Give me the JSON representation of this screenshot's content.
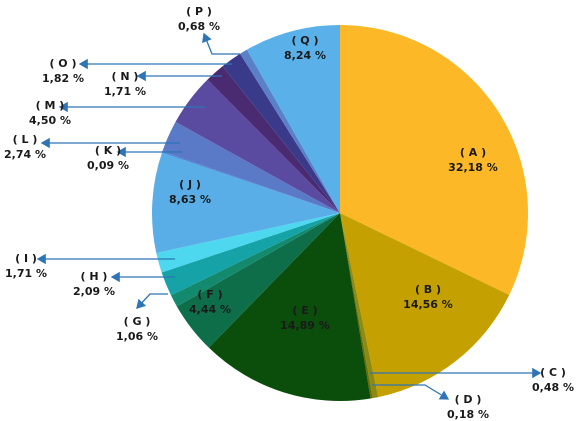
{
  "chart_data": {
    "type": "pie",
    "categories": [
      "( A )",
      "( B )",
      "( C )",
      "( D )",
      "( E )",
      "( F )",
      "( G )",
      "( H )",
      "( I )",
      "( J )",
      "( K )",
      "( L )",
      "( M )",
      "( N )",
      "( O )",
      "( P )",
      "( Q )"
    ],
    "values": [
      32.18,
      14.56,
      0.48,
      0.18,
      14.89,
      4.44,
      1.06,
      2.09,
      1.71,
      8.63,
      0.09,
      2.74,
      4.5,
      1.71,
      1.82,
      0.68,
      8.24
    ],
    "value_labels": [
      "32,18 %",
      "14,56 %",
      "0,48 %",
      "0,18 %",
      "14,89 %",
      "4,44 %",
      "1,06 %",
      "2,09 %",
      "1,71 %",
      "8,63 %",
      "0,09 %",
      "2,74 %",
      "4,50 %",
      "1,71 %",
      "1,82 %",
      "0,68 %",
      "8,24 %"
    ],
    "colors": [
      "#fdb827",
      "#c4a000",
      "#8c8a10",
      "#6b6b00",
      "#0b4d0b",
      "#0e6e4a",
      "#138a6e",
      "#15a3a8",
      "#4dd8f0",
      "#5aaee8",
      "#4a7fd0",
      "#5a7ac8",
      "#5a4aa0",
      "#4a2a70",
      "#3a3a8a",
      "#5a80c8",
      "#5ab0e8"
    ]
  }
}
